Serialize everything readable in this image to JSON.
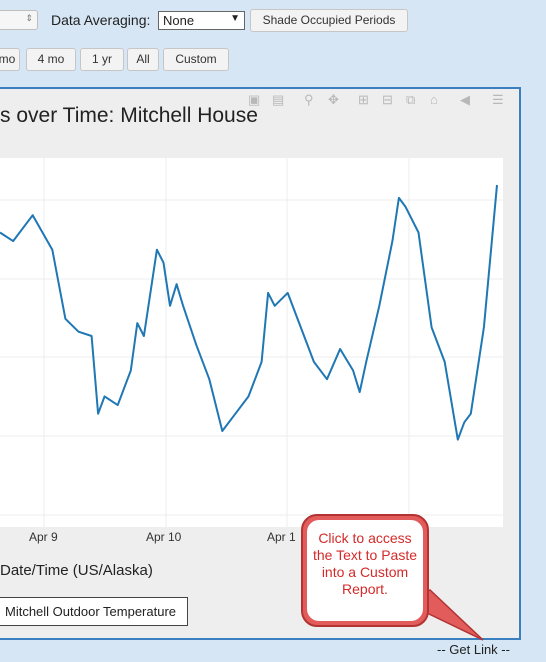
{
  "controls": {
    "data_averaging_label": "Data Averaging:",
    "data_averaging_value": "None",
    "shade_button": "Shade Occupied Periods",
    "ranges": [
      "mo",
      "4 mo",
      "1 yr",
      "All",
      "Custom"
    ]
  },
  "chart_data": {
    "type": "line",
    "title": "s over Time: Mitchell House",
    "xlabel": "Date/Time (US/Alaska)",
    "x_tick_labels": [
      "Apr 9",
      "Apr 10",
      "Apr 1"
    ],
    "series": [
      {
        "name": "Mitchell Outdoor Temperature",
        "color": "#1f77b4",
        "x": [
          0,
          0.1,
          0.25,
          0.4,
          0.5,
          0.6,
          0.7,
          0.75,
          0.8,
          0.9,
          1.0,
          1.05,
          1.1,
          1.2,
          1.25,
          1.3,
          1.35,
          1.4,
          1.5,
          1.6,
          1.7,
          1.8,
          1.9,
          2.0,
          2.05,
          2.1,
          2.2,
          2.3,
          2.4,
          2.5,
          2.6,
          2.7,
          2.75,
          2.8,
          2.9,
          3.0,
          3.05,
          3.1,
          3.2,
          3.3,
          3.4,
          3.5,
          3.55,
          3.6,
          3.7,
          3.8
        ],
        "values": [
          0.62,
          0.6,
          0.66,
          0.58,
          0.42,
          0.39,
          0.38,
          0.2,
          0.24,
          0.22,
          0.3,
          0.41,
          0.38,
          0.58,
          0.55,
          0.45,
          0.5,
          0.45,
          0.36,
          0.28,
          0.16,
          0.2,
          0.24,
          0.32,
          0.48,
          0.45,
          0.48,
          0.4,
          0.32,
          0.28,
          0.35,
          0.3,
          0.25,
          0.32,
          0.45,
          0.6,
          0.7,
          0.68,
          0.62,
          0.4,
          0.32,
          0.14,
          0.18,
          0.2,
          0.4,
          0.73
        ],
        "note_values": "normalized level 0-1 read from plot (no y tick labels visible)"
      }
    ]
  },
  "legend_label": "Mitchell Outdoor Temperature",
  "callout_text": "Click to access the Text to Paste into a Custom Report.",
  "get_link": "-- Get Link --"
}
